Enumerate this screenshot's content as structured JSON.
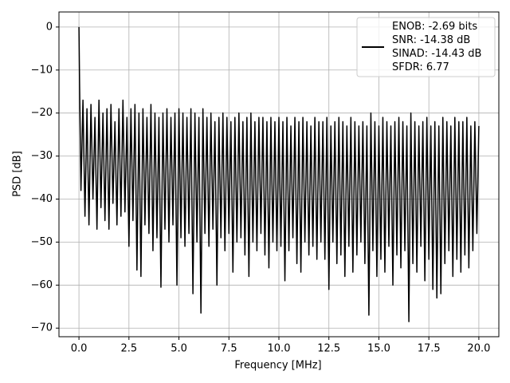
{
  "chart_data": {
    "type": "line",
    "xlabel": "Frequency [MHz]",
    "ylabel": "PSD [dB]",
    "x": [
      0,
      0.03,
      0.1,
      0.2,
      0.3,
      0.4,
      0.5,
      0.6,
      0.7,
      0.8,
      0.9,
      1.0,
      1.1,
      1.2,
      1.3,
      1.4,
      1.5,
      1.6,
      1.7,
      1.8,
      1.9,
      2.0,
      2.1,
      2.2,
      2.3,
      2.4,
      2.5,
      2.6,
      2.7,
      2.8,
      2.9,
      3.0,
      3.1,
      3.2,
      3.3,
      3.4,
      3.5,
      3.6,
      3.7,
      3.8,
      3.9,
      4.0,
      4.1,
      4.2,
      4.3,
      4.4,
      4.5,
      4.6,
      4.7,
      4.8,
      4.9,
      5.0,
      5.1,
      5.2,
      5.3,
      5.4,
      5.5,
      5.6,
      5.7,
      5.8,
      5.9,
      6.0,
      6.1,
      6.2,
      6.3,
      6.4,
      6.5,
      6.6,
      6.7,
      6.8,
      6.9,
      7.0,
      7.1,
      7.2,
      7.3,
      7.4,
      7.5,
      7.6,
      7.7,
      7.8,
      7.9,
      8.0,
      8.1,
      8.2,
      8.3,
      8.4,
      8.5,
      8.6,
      8.7,
      8.8,
      8.9,
      9.0,
      9.1,
      9.2,
      9.3,
      9.4,
      9.5,
      9.6,
      9.7,
      9.8,
      9.9,
      10.0,
      10.1,
      10.2,
      10.3,
      10.4,
      10.5,
      10.6,
      10.7,
      10.8,
      10.9,
      11.0,
      11.1,
      11.2,
      11.3,
      11.4,
      11.5,
      11.6,
      11.7,
      11.8,
      11.9,
      12.0,
      12.1,
      12.2,
      12.3,
      12.4,
      12.5,
      12.6,
      12.7,
      12.8,
      12.9,
      13.0,
      13.1,
      13.2,
      13.3,
      13.4,
      13.5,
      13.6,
      13.7,
      13.8,
      13.9,
      14.0,
      14.1,
      14.2,
      14.3,
      14.4,
      14.5,
      14.6,
      14.7,
      14.8,
      14.9,
      15.0,
      15.1,
      15.2,
      15.3,
      15.4,
      15.5,
      15.6,
      15.7,
      15.8,
      15.9,
      16.0,
      16.1,
      16.2,
      16.3,
      16.4,
      16.5,
      16.6,
      16.7,
      16.8,
      16.9,
      17.0,
      17.1,
      17.2,
      17.3,
      17.4,
      17.5,
      17.6,
      17.7,
      17.8,
      17.9,
      18.0,
      18.1,
      18.2,
      18.3,
      18.4,
      18.5,
      18.6,
      18.7,
      18.8,
      18.9,
      19.0,
      19.1,
      19.2,
      19.3,
      19.4,
      19.5,
      19.6,
      19.7,
      19.8,
      19.9,
      20.0
    ],
    "series": [
      {
        "name": "ENOB: -2.69 bits\nSNR: -14.38 dB\nSINAD: -14.43 dB\nSFDR: 6.77",
        "color": "#000000",
        "values": [
          0,
          -13,
          -38,
          -17,
          -44,
          -19,
          -46,
          -18,
          -40,
          -21,
          -47,
          -17,
          -42,
          -20,
          -45,
          -19,
          -47,
          -18,
          -41,
          -22,
          -46,
          -19,
          -44,
          -17,
          -43,
          -21,
          -51,
          -19,
          -45,
          -18,
          -56.5,
          -20,
          -58,
          -19,
          -46,
          -21,
          -48,
          -18,
          -52,
          -20,
          -49,
          -21,
          -60.5,
          -20,
          -47,
          -19,
          -50,
          -21,
          -46,
          -20,
          -60,
          -19,
          -49,
          -20,
          -51,
          -21,
          -48,
          -19,
          -62,
          -20,
          -50,
          -21,
          -66.5,
          -19,
          -48,
          -21,
          -51,
          -20,
          -47,
          -22,
          -60,
          -21,
          -49,
          -20,
          -52,
          -21,
          -48,
          -22,
          -57,
          -21,
          -50,
          -20,
          -49,
          -22,
          -53,
          -21,
          -58,
          -20,
          -50,
          -22,
          -52,
          -21,
          -48,
          -21,
          -53,
          -22,
          -56,
          -21,
          -50,
          -22,
          -52,
          -21,
          -51,
          -22,
          -59,
          -21,
          -52,
          -23,
          -49,
          -21,
          -55,
          -22,
          -57,
          -21,
          -50,
          -22,
          -53,
          -23,
          -51,
          -21,
          -54,
          -22,
          -50,
          -22,
          -54,
          -21,
          -61,
          -23,
          -50,
          -22,
          -55,
          -21,
          -53,
          -22,
          -58,
          -23,
          -51,
          -21,
          -57,
          -22,
          -53,
          -23,
          -50,
          -22,
          -55,
          -23,
          -67,
          -20,
          -52,
          -22,
          -58,
          -23,
          -54,
          -21,
          -57,
          -22,
          -51,
          -23,
          -60,
          -22,
          -53,
          -21,
          -56,
          -22,
          -52,
          -23,
          -68.5,
          -20,
          -55,
          -22,
          -57,
          -23,
          -51,
          -22,
          -59,
          -21,
          -54,
          -23,
          -61,
          -22,
          -63,
          -23,
          -62,
          -21,
          -55,
          -22,
          -52,
          -23,
          -58,
          -21,
          -54,
          -22,
          -57,
          -22,
          -53,
          -21,
          -56,
          -23,
          -52,
          -22,
          -48,
          -23
        ]
      }
    ],
    "xlim": [
      -1.0,
      21.0
    ],
    "xticks": [
      {
        "value": 0,
        "label": "0.0"
      },
      2.5,
      {
        "value": 5,
        "label": "5.0"
      },
      7.5,
      {
        "value": 10,
        "label": "10.0"
      },
      12.5,
      {
        "value": 15,
        "label": "15.0"
      },
      17.5,
      {
        "value": 20,
        "label": "20.0"
      }
    ],
    "ylim": [
      -72,
      3.5
    ],
    "yticks": [
      {
        "value": -70,
        "label": "−70"
      },
      {
        "value": -60,
        "label": "−60"
      },
      {
        "value": -50,
        "label": "−50"
      },
      {
        "value": -40,
        "label": "−40"
      },
      {
        "value": -30,
        "label": "−30"
      },
      {
        "value": -20,
        "label": "−20"
      },
      {
        "value": -10,
        "label": "−10"
      },
      0
    ],
    "grid": true,
    "legend": "upper right"
  }
}
